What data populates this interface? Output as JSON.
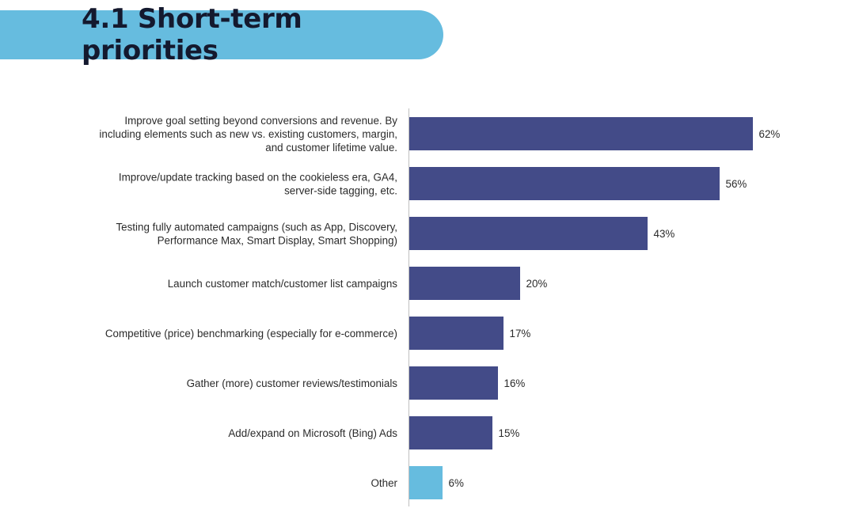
{
  "header": {
    "title": "4.1 Short-term priorities"
  },
  "colors": {
    "banner": "#66bcdf",
    "bar_primary": "#434b88",
    "bar_other": "#66bcdf",
    "axis": "#bfbfbf"
  },
  "chart_data": {
    "type": "bar",
    "orientation": "horizontal",
    "title": "4.1 Short-term priorities",
    "xlabel": "",
    "ylabel": "",
    "grid": false,
    "legend": "none",
    "categories": [
      "Improve goal setting beyond conversions and revenue. By including elements such as new vs. existing customers, margin, and customer lifetime value.",
      "Improve/update tracking based on the cookieless era, GA4, server-side tagging, etc.",
      "Testing fully automated campaigns (such as App, Discovery, Performance Max, Smart Display, Smart Shopping)",
      "Launch customer match/customer list campaigns",
      "Competitive (price) benchmarking (especially for e-commerce)",
      "Gather (more) customer reviews/testimonials",
      "Add/expand on Microsoft (Bing) Ads",
      "Other"
    ],
    "category_lines": [
      [
        "Improve goal setting beyond conversions and revenue. By",
        "including elements such as new vs. existing customers, margin,",
        "and customer lifetime value."
      ],
      [
        "Improve/update tracking based on the cookieless era, GA4,",
        "server-side tagging, etc."
      ],
      [
        "Testing fully automated campaigns (such as App, Discovery,",
        "Performance Max, Smart Display, Smart Shopping)"
      ],
      [
        "Launch customer match/customer list campaigns"
      ],
      [
        "Competitive (price) benchmarking (especially for e-commerce)"
      ],
      [
        "Gather (more) customer reviews/testimonials"
      ],
      [
        "Add/expand on Microsoft (Bing) Ads"
      ],
      [
        "Other"
      ]
    ],
    "values": [
      62,
      56,
      43,
      20,
      17,
      16,
      15,
      6
    ],
    "value_labels": [
      "62%",
      "56%",
      "43%",
      "20%",
      "17%",
      "16%",
      "15%",
      "6%"
    ],
    "highlight_index": 7
  }
}
